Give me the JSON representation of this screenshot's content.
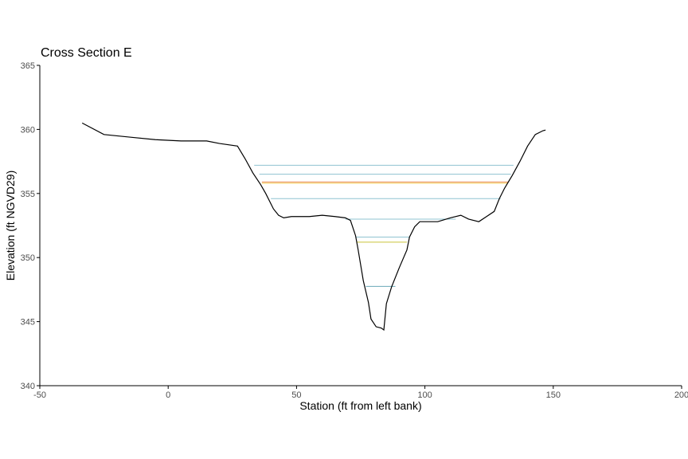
{
  "chart_data": {
    "type": "line",
    "title": "Cross Section E",
    "xlabel": "Station (ft from left bank)",
    "ylabel": "Elevation (ft NGVD29)",
    "xlim": [
      -50,
      200
    ],
    "ylim": [
      340,
      365
    ],
    "x_ticks": [
      -50,
      0,
      50,
      100,
      150,
      200
    ],
    "y_ticks": [
      340,
      345,
      350,
      355,
      360,
      365
    ],
    "grid": false,
    "legend": "none",
    "profile": {
      "color": "#000000",
      "x": [
        -33.5,
        -25,
        -15,
        -5,
        5,
        15,
        20,
        27,
        30,
        33,
        36,
        38,
        41,
        43,
        45,
        48,
        55,
        60,
        65,
        69,
        71,
        72,
        73,
        74,
        76,
        78,
        79,
        81,
        83,
        84,
        85,
        87,
        90,
        93,
        94,
        96,
        98,
        105,
        110,
        114,
        117,
        121,
        124,
        127,
        129,
        131,
        134,
        137,
        140,
        143,
        146,
        147
      ],
      "y": [
        360.5,
        359.6,
        359.4,
        359.2,
        359.1,
        359.1,
        358.9,
        358.7,
        357.7,
        356.6,
        355.7,
        355,
        353.8,
        353.3,
        353.1,
        353.2,
        353.2,
        353.3,
        353.2,
        353.1,
        352.9,
        352.3,
        351.7,
        350.6,
        348.2,
        346.5,
        345.2,
        344.6,
        344.5,
        344.35,
        346.4,
        347.7,
        349.2,
        350.6,
        351.6,
        352.4,
        352.8,
        352.8,
        353.1,
        353.3,
        353.0,
        352.8,
        353.2,
        353.6,
        354.6,
        355.4,
        356.4,
        357.5,
        358.7,
        359.6,
        359.9,
        359.95
      ]
    },
    "water_levels": [
      {
        "elevation": 357.2,
        "x": [
          33.5,
          134.5
        ],
        "color": "#8fc3d1"
      },
      {
        "elevation": 356.5,
        "x": [
          35.5,
          133.5
        ],
        "color": "#8fc3d1"
      },
      {
        "elevation": 355.9,
        "x": [
          36.5,
          132.5
        ],
        "color": "#e88b5a"
      },
      {
        "elevation": 355.8,
        "x": [
          36.5,
          132.3
        ],
        "color": "#f2c94c"
      },
      {
        "elevation": 354.6,
        "x": [
          40,
          129.5
        ],
        "color": "#8fc3d1"
      },
      {
        "elevation": 353.0,
        "x": [
          69,
          112
        ],
        "color": "#8fc3d1"
      },
      {
        "elevation": 351.6,
        "x": [
          73,
          94
        ],
        "color": "#8fc3d1"
      },
      {
        "elevation": 351.2,
        "x": [
          73.5,
          93
        ],
        "color": "#c9c33a"
      },
      {
        "elevation": 347.75,
        "x": [
          77,
          88.5
        ],
        "color": "#6aa8b8"
      }
    ]
  }
}
